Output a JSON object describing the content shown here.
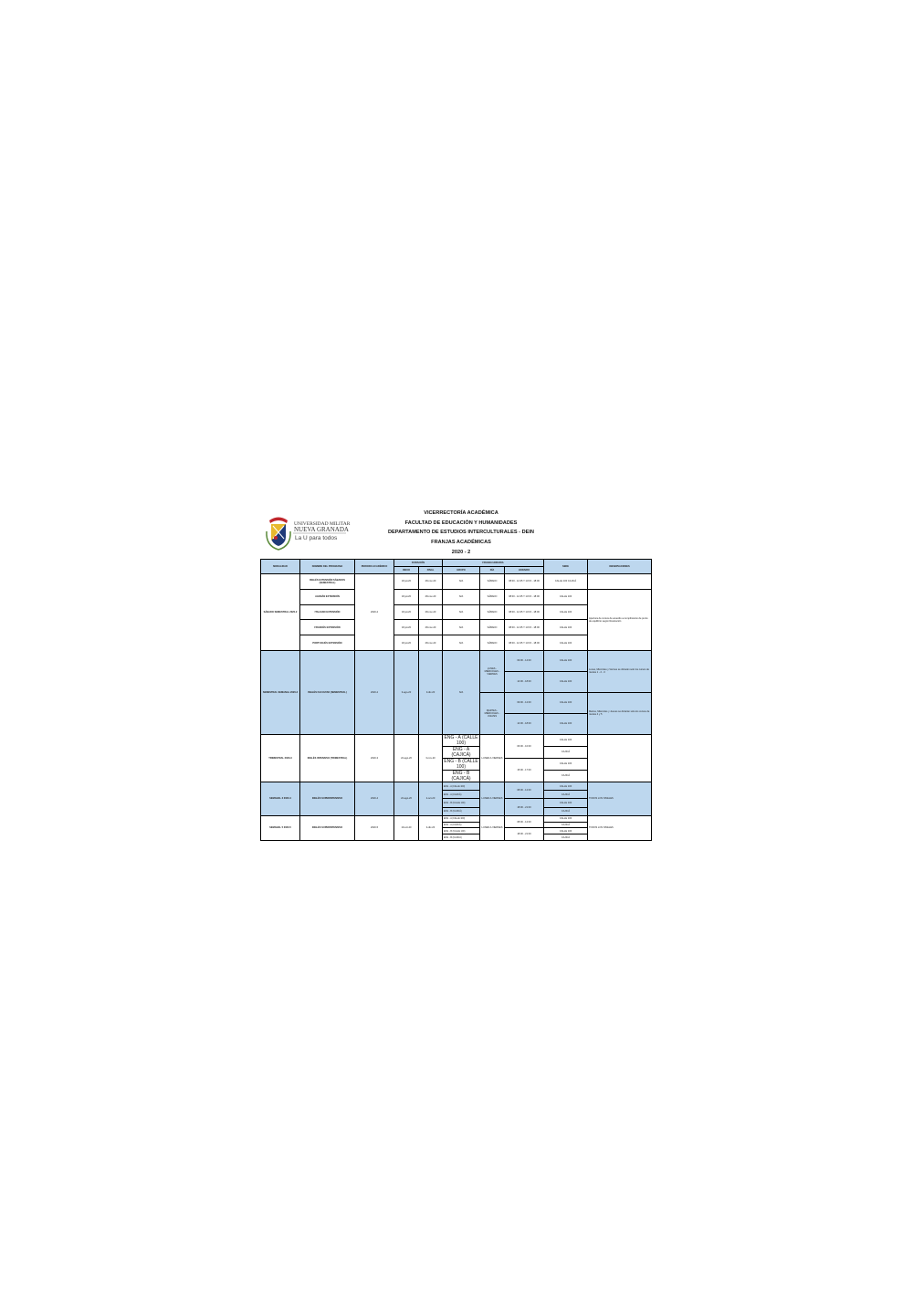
{
  "logo": {
    "line1": "Universidad Militar",
    "line2": "Nueva Granada",
    "tagline": "La U para todos",
    "colors": {
      "shield_blue": "#1f3a78",
      "shield_gold": "#e8b92e",
      "ribbon_red": "#c0262c"
    }
  },
  "header": {
    "lines": [
      "VICERRECTORÍA ACADÉMICA",
      "FACULTAD DE EDUCACIÓN Y HUMANIDADES",
      "DEPARTAMENTO DE ESTUDIOS INTERCULTURALES - DEIN",
      "FRANJAS ACADÉMICAS",
      "2020 - 2"
    ]
  },
  "table": {
    "columns": {
      "modalidad": "MODALIDAD",
      "programa": "NOMBRE DEL PROGRAMA",
      "periodo": "PERIODO ACADÉMICO",
      "duracion": "DURACIÓN",
      "inicio": "INICIO",
      "final": "FINAL",
      "franja": "FRANJA HORARIA",
      "grupo": "GRUPO",
      "dia": "DÍA",
      "horario": "HORARIO",
      "sede": "SEDE",
      "observaciones": "OBSERVACIONES"
    },
    "colors": {
      "header_fill": "#bdd7ee",
      "highlight_fill": "#bdd7ee",
      "border": "#000000"
    },
    "sections": [
      {
        "modalidad": "SÁBADO SEMESTRAL 2020-2",
        "periodo": "2020-2",
        "highlight": false,
        "rows": [
          {
            "programa": "INGLÉS EXTENSIÓN SÁBADOS (SEMESTRAL)",
            "inicio": "18-jul-20",
            "final": "28-nov-20",
            "grupo": "N/A",
            "dia": "SÁBADO",
            "horario": "08:00 - 12:45 Y 13:15 - 18:00",
            "sede": "CALLE 100 CAJICÁ",
            "obs": ""
          },
          {
            "programa": "ALEMÁN EXTENSIÓN",
            "inicio": "18-jul-20",
            "final": "28-nov-20",
            "grupo": "N/A",
            "dia": "SÁBADO",
            "horario": "08:00 - 12:45 Y 13:15 - 18:00",
            "sede": "CALLE 100",
            "obs": "Apertura de cursos de acuerdo a cumplimiento de punto de equilibrio según Resolución"
          },
          {
            "programa": "ITALIANO EXTENSIÓN",
            "inicio": "18-jul-20",
            "final": "28-nov-20",
            "grupo": "N/A",
            "dia": "SÁBADO",
            "horario": "08:00 - 12:45 Y 13:15 - 18:00",
            "sede": "CALLE 100",
            "obs": "Apertura de cursos de acuerdo a cumplimiento de punto de equilibrio según Resolución"
          },
          {
            "programa": "FRANCÉS EXTENSIÓN",
            "inicio": "18-jul-20",
            "final": "28-nov-20",
            "grupo": "N/A",
            "dia": "SÁBADO",
            "horario": "08:00 - 12:45 Y 13:15 - 18:00",
            "sede": "CALLE 100",
            "obs": "Apertura de cursos de acuerdo a cumplimiento de punto de equilibrio según Resolución"
          },
          {
            "programa": "PORTUGUÉS EXTENSIÓN",
            "inicio": "18-jul-20",
            "final": "28-nov-20",
            "grupo": "N/A",
            "dia": "SÁBADO",
            "horario": "08:00 - 12:45 Y 13:15 - 18:00",
            "sede": "CALLE 100",
            "obs": "Apertura de cursos de acuerdo a cumplimiento de punto de equilibrio según Resolución"
          }
        ]
      },
      {
        "modalidad": "SEMESTRAL SEMANAL 2020-2",
        "periodo": "2020-2",
        "highlight": true,
        "rows": [
          {
            "programa": "INGLÉS FACULTAD (SEMESTRAL)",
            "inicio": "3-ago-20",
            "final": "3-dic-20",
            "grupo": "N/A",
            "dia": "LUNES - MIÉRCOLES - VIERNES",
            "horario": "09:00 - 14:00",
            "sede": "CALLE 100",
            "obs": "Lunes, Miércoles y Viernes se dictarán solo los cursos de niveles 1 - 2 - 3"
          },
          {
            "programa": "INGLÉS FACULTAD (SEMESTRAL)",
            "inicio": "3-ago-20",
            "final": "3-dic-20",
            "grupo": "N/A",
            "dia": "LUNES - MIÉRCOLES - VIERNES",
            "horario": "14:00 - 18:00",
            "sede": "CALLE 100",
            "obs": "Lunes, Miércoles y Viernes se dictarán solo los cursos de niveles 1 - 2 - 3"
          },
          {
            "programa": "INGLÉS FACULTAD (SEMESTRAL)",
            "inicio": "3-ago-20",
            "final": "3-dic-20",
            "grupo": "N/A",
            "dia": "MARTES - MIÉRCOLES - JUEVES",
            "horario": "09:00 - 12:00",
            "sede": "CALLE 100",
            "obs": "Martes, Miércoles y Jueves se dictarán solo los cursos de niveles 4 y 5"
          },
          {
            "programa": "INGLÉS FACULTAD (SEMESTRAL)",
            "inicio": "3-ago-20",
            "final": "3-dic-20",
            "grupo": "N/A",
            "dia": "MARTES - MIÉRCOLES - JUEVES",
            "horario": "14:00 - 18:00",
            "sede": "CALLE 100",
            "obs": "Martes, Miércoles y Jueves se dictarán solo los cursos de niveles 4 y 5"
          }
        ]
      },
      {
        "modalidad": "TRIMESTRAL 2020-3",
        "periodo": "2020-3",
        "highlight": false,
        "rows": [
          {
            "programa": "INGLÉS INTENSIVO (TRIMESTRAL)",
            "inicio": "24-ago-20",
            "final": "3-nov-20",
            "grupo": "ENG - A (CALLE 100)",
            "dia": "LUNES A VIERNES",
            "horario": "06:00 - 10:00",
            "sede": "CALLE 100",
            "obs": ""
          },
          {
            "programa": "INGLÉS INTENSIVO (TRIMESTRAL)",
            "inicio": "24-ago-20",
            "final": "3-nov-20",
            "grupo": "ENG - A (CAJICÁ)",
            "dia": "LUNES A VIERNES",
            "horario": "06:00 - 10:00",
            "sede": "CAJICÁ",
            "obs": ""
          },
          {
            "programa": "INGLÉS INTENSIVO (TRIMESTRAL)",
            "inicio": "24-ago-20",
            "final": "3-nov-20",
            "grupo": "ENG - B (CALLE 100)",
            "dia": "LUNES A VIERNES",
            "horario": "15:00 - 17:00",
            "sede": "CALLE 100",
            "obs": ""
          },
          {
            "programa": "INGLÉS INTENSIVO (TRIMESTRAL)",
            "inicio": "24-ago-20",
            "final": "3-nov-20",
            "grupo": "ENG - B (CAJICÁ)",
            "dia": "LUNES A VIERNES",
            "horario": "15:00 - 17:00",
            "sede": "CAJICÁ",
            "obs": ""
          }
        ]
      },
      {
        "modalidad": "SEMANAL 3 2020-4",
        "periodo": "2020-4",
        "highlight": true,
        "rows": [
          {
            "programa": "INGLÉS SUPERINTENSIVO",
            "inicio": "24-ago-20",
            "final": "2-oct-20",
            "grupo": "ENG - A (CALLE 100)",
            "dia": "LUNES A VIERNES",
            "horario": "08:00 - 12:00",
            "sede": "CALLE 100",
            "obs": "TODOS LOS NIVELES"
          },
          {
            "programa": "INGLÉS SUPERINTENSIVO",
            "inicio": "24-ago-20",
            "final": "2-oct-20",
            "grupo": "ENG - A (CAJICÁ)",
            "dia": "LUNES A VIERNES",
            "horario": "08:00 - 12:00",
            "sede": "CAJICÁ",
            "obs": "TODOS LOS NIVELES"
          },
          {
            "programa": "INGLÉS SUPERINTENSIVO",
            "inicio": "24-ago-20",
            "final": "2-oct-20",
            "grupo": "ENG - B (CALLE 100)",
            "dia": "LUNES A VIERNES",
            "horario": "18:00 - 21:00",
            "sede": "CALLE 100",
            "obs": "TODOS LOS NIVELES"
          },
          {
            "programa": "INGLÉS SUPERINTENSIVO",
            "inicio": "24-ago-20",
            "final": "2-oct-20",
            "grupo": "ENG - B (CAJICÁ)",
            "dia": "LUNES A VIERNES",
            "horario": "18:00 - 21:00",
            "sede": "CAJICÁ",
            "obs": "TODOS LOS NIVELES"
          }
        ]
      },
      {
        "modalidad": "SEMANAL 5 2020-5",
        "periodo": "2020-5",
        "highlight": false,
        "rows": [
          {
            "programa": "INGLÉS SUPERINTENSIVO",
            "inicio": "19-oct-20",
            "final": "4-dic-20",
            "grupo": "ENG - A (CALLE 100)",
            "dia": "LUNES A VIERNES",
            "horario": "08:00 - 12:00",
            "sede": "CALLE 100",
            "obs": "TODOS LOS NIVELES"
          },
          {
            "programa": "INGLÉS SUPERINTENSIVO",
            "inicio": "19-oct-20",
            "final": "4-dic-20",
            "grupo": "ENG - A (CAJICÁ)",
            "dia": "LUNES A VIERNES",
            "horario": "08:00 - 12:00",
            "sede": "CAJICÁ",
            "obs": "TODOS LOS NIVELES"
          },
          {
            "programa": "INGLÉS SUPERINTENSIVO",
            "inicio": "19-oct-20",
            "final": "4-dic-20",
            "grupo": "ENG - B (CALLE 100)",
            "dia": "LUNES A VIERNES",
            "horario": "18:00 - 21:00",
            "sede": "CALLE 100",
            "obs": "TODOS LOS NIVELES"
          },
          {
            "programa": "INGLÉS SUPERINTENSIVO",
            "inicio": "19-oct-20",
            "final": "4-dic-20",
            "grupo": "ENG - B (CAJICÁ)",
            "dia": "LUNES A VIERNES",
            "horario": "18:00 - 21:00",
            "sede": "CAJICÁ",
            "obs": "TODOS LOS NIVELES"
          }
        ]
      }
    ]
  }
}
